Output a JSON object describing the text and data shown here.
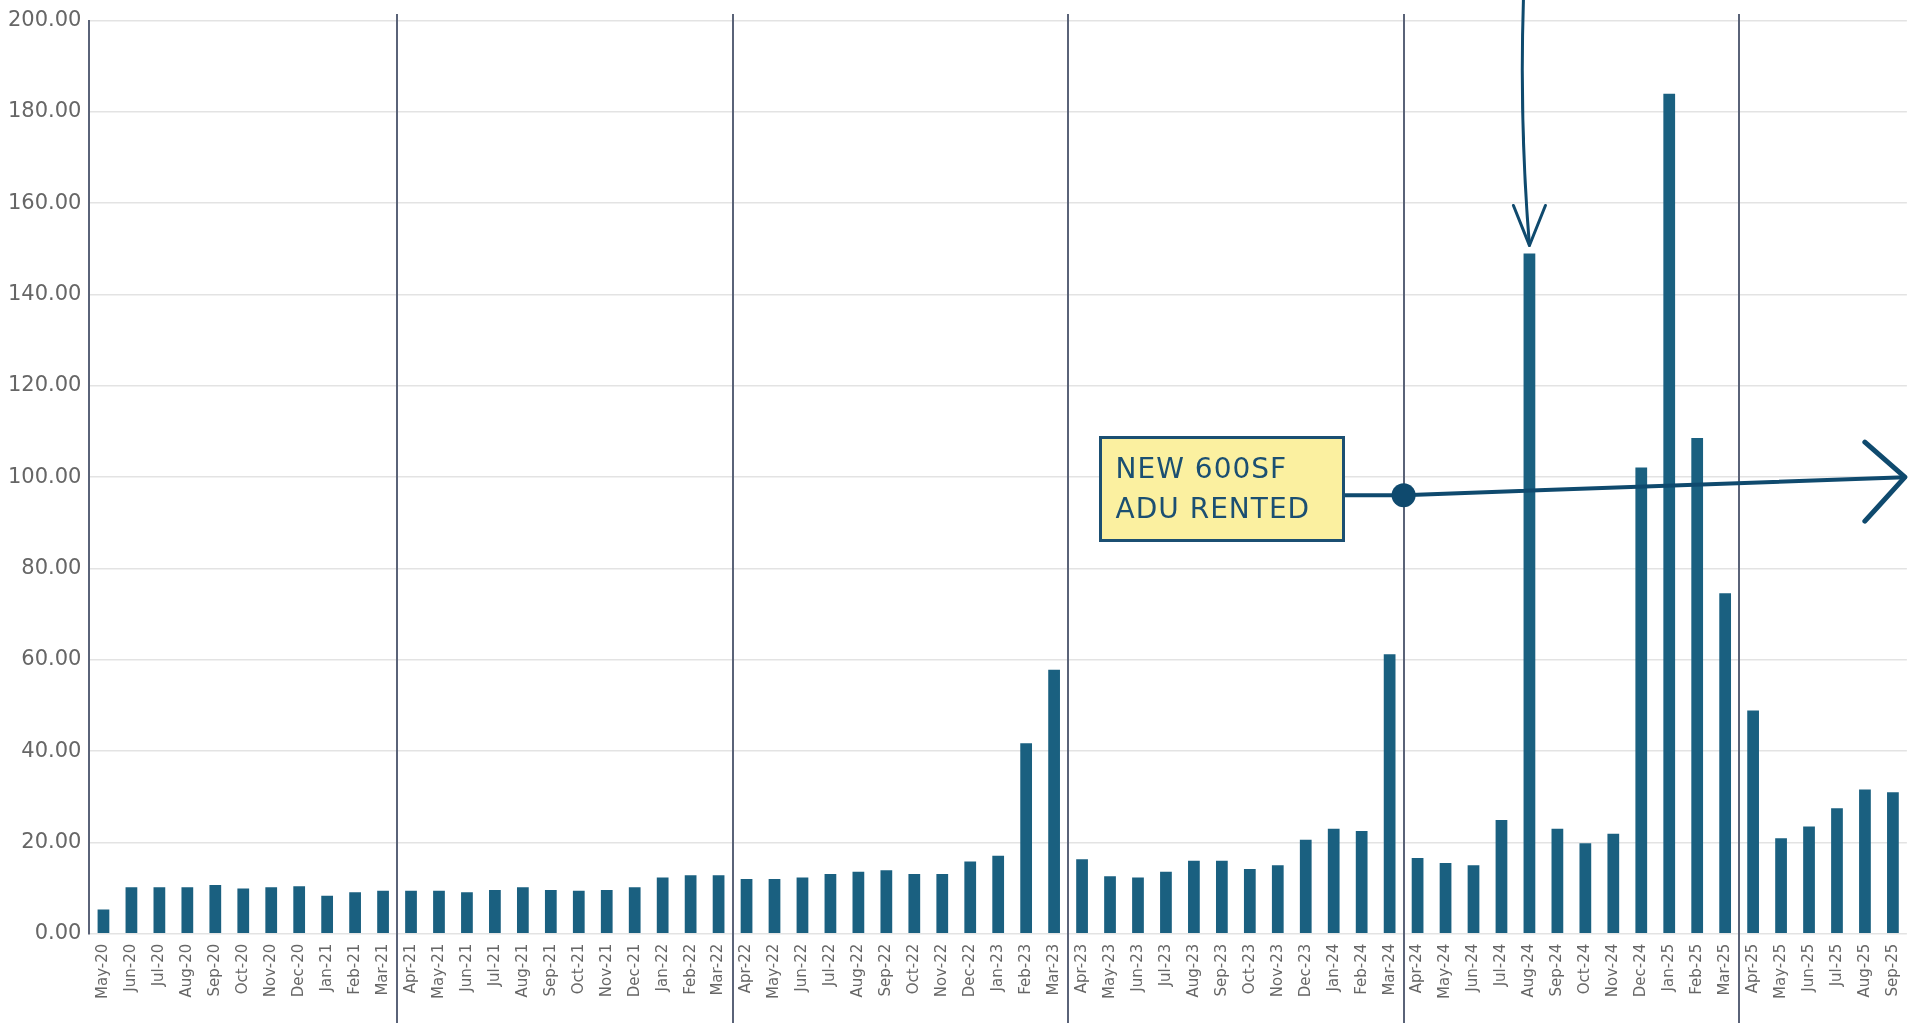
{
  "chart_data": {
    "type": "bar",
    "categories": [
      "May-20",
      "Jun-20",
      "Jul-20",
      "Aug-20",
      "Sep-20",
      "Oct-20",
      "Nov-20",
      "Dec-20",
      "Jan-21",
      "Feb-21",
      "Mar-21",
      "Apr-21",
      "May-21",
      "Jun-21",
      "Jul-21",
      "Aug-21",
      "Sep-21",
      "Oct-21",
      "Nov-21",
      "Dec-21",
      "Jan-22",
      "Feb-22",
      "Mar-22",
      "Apr-22",
      "May-22",
      "Jun-22",
      "Jul-22",
      "Aug-22",
      "Sep-22",
      "Oct-22",
      "Nov-22",
      "Dec-22",
      "Jan-23",
      "Feb-23",
      "Mar-23",
      "Apr-23",
      "May-23",
      "Jun-23",
      "Jul-23",
      "Aug-23",
      "Sep-23",
      "Oct-23",
      "Nov-23",
      "Dec-23",
      "Jan-24",
      "Feb-24",
      "Mar-24",
      "Apr-24",
      "May-24",
      "Jun-24",
      "Jul-24",
      "Aug-24",
      "Sep-24",
      "Oct-24",
      "Nov-24",
      "Dec-24",
      "Jan-25",
      "Feb-25",
      "Mar-25",
      "Apr-25",
      "May-25",
      "Jun-25",
      "Jul-25",
      "Aug-25",
      "Sep-25"
    ],
    "values": [
      5.3,
      10.2,
      10.2,
      10.2,
      10.7,
      9.9,
      10.2,
      10.4,
      8.3,
      9.1,
      9.4,
      9.4,
      9.4,
      9.1,
      9.6,
      10.2,
      9.6,
      9.4,
      9.6,
      10.2,
      12.3,
      12.8,
      12.8,
      12.0,
      12.0,
      12.3,
      13.1,
      13.6,
      13.9,
      13.1,
      13.1,
      15.8,
      17.1,
      41.7,
      57.8,
      16.3,
      12.6,
      12.3,
      13.6,
      16.0,
      16.0,
      14.2,
      15.0,
      20.6,
      23.0,
      22.5,
      61.2,
      16.6,
      15.5,
      15.0,
      24.9,
      149,
      23.0,
      19.8,
      21.9,
      102.1,
      184,
      108.6,
      74.6,
      48.9,
      20.9,
      23.5,
      27.5,
      31.6,
      31.0
    ],
    "color": "#1a6080",
    "ylim": [
      0,
      200
    ],
    "yticks": [
      {
        "value": 0,
        "label": "0.00"
      },
      {
        "value": 20,
        "label": "20.00"
      },
      {
        "value": 40,
        "label": "40.00"
      },
      {
        "value": 60,
        "label": "60.00"
      },
      {
        "value": 80,
        "label": "80.00"
      },
      {
        "value": 100,
        "label": "100.00"
      },
      {
        "value": 120,
        "label": "120.00"
      },
      {
        "value": 140,
        "label": "140.00"
      },
      {
        "value": 160,
        "label": "160.00"
      },
      {
        "value": 180,
        "label": "180.00"
      },
      {
        "value": 200,
        "label": "200.00"
      }
    ],
    "grid": "y",
    "ref_lines": [
      {
        "axis": "x",
        "value": "Apr-21",
        "color": "#5a6378"
      },
      {
        "axis": "x",
        "value": "Apr-22",
        "color": "#5a6378"
      },
      {
        "axis": "x",
        "value": "Apr-23",
        "color": "#5a6378"
      },
      {
        "axis": "x",
        "value": "Apr-24",
        "color": "#5a6378"
      },
      {
        "axis": "x",
        "value": "Apr-25",
        "color": "#5a6378"
      }
    ],
    "annotations": [
      "NEW 600SF ADU RENTED"
    ]
  }
}
